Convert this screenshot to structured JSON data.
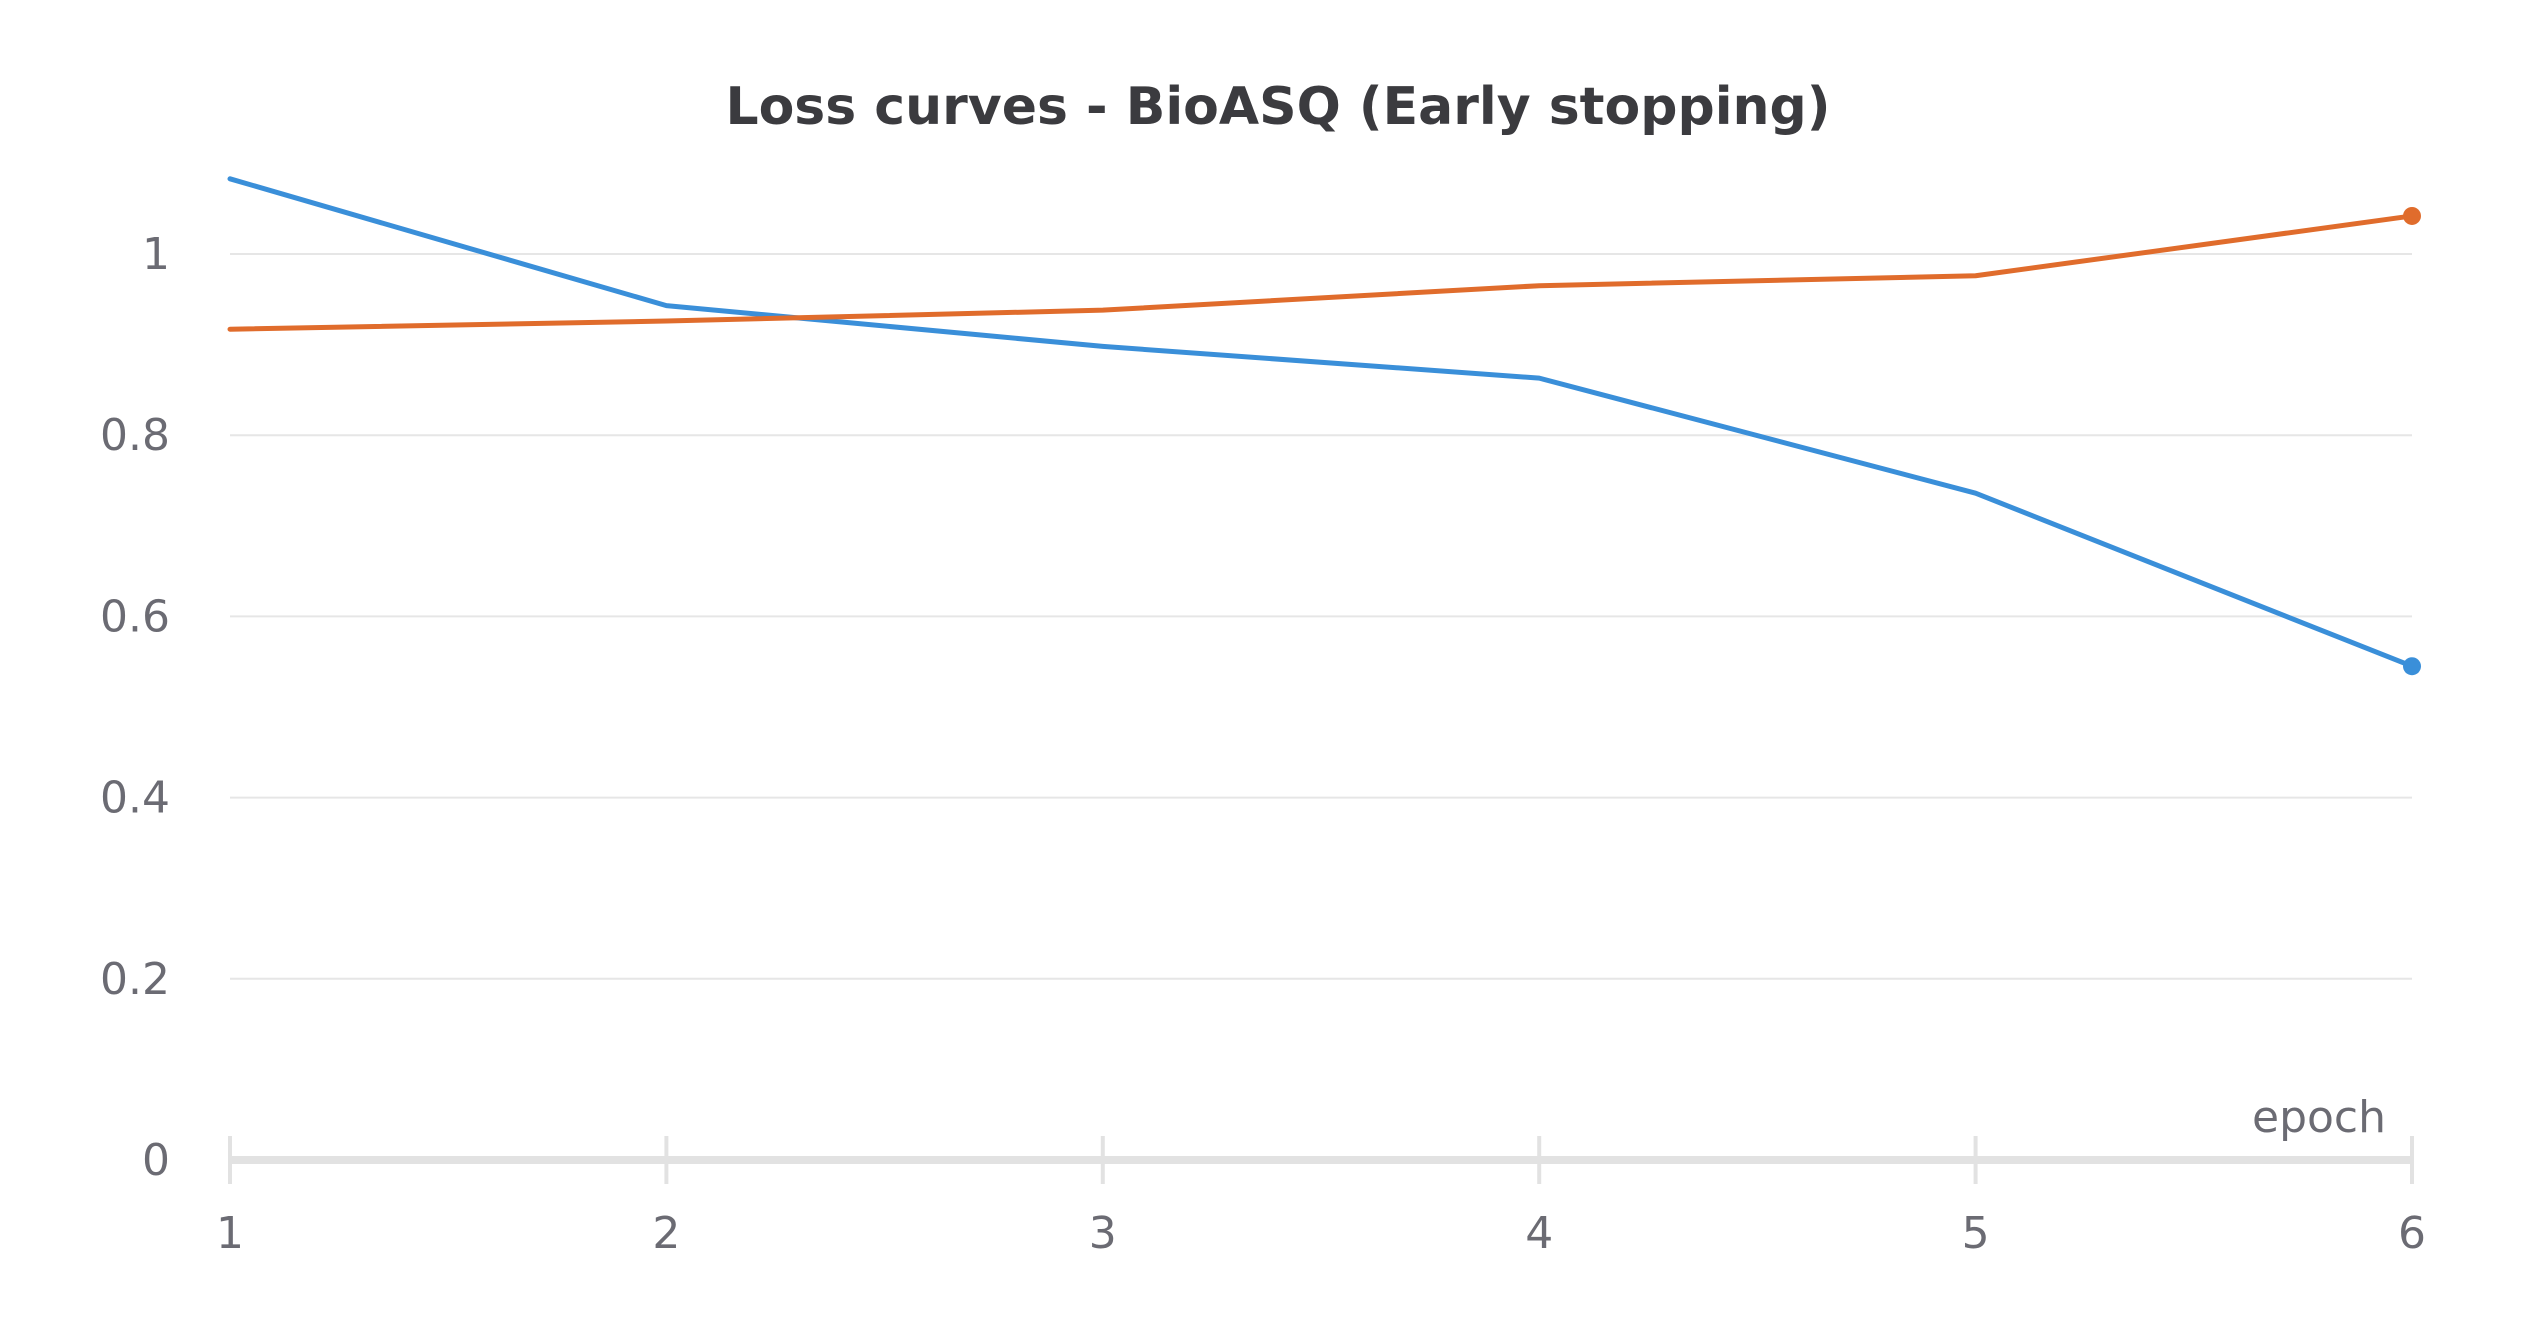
{
  "chart_data": {
    "type": "line",
    "title": "Loss curves - BioASQ (Early stopping)",
    "xlabel": "epoch",
    "ylabel": "",
    "x": [
      1,
      2,
      3,
      4,
      5,
      6
    ],
    "xlim": [
      1,
      6
    ],
    "ylim": [
      0,
      1.1
    ],
    "x_ticks": [
      "1",
      "2",
      "3",
      "4",
      "5",
      "6"
    ],
    "y_ticks": [
      "0",
      "0.2",
      "0.4",
      "0.6",
      "0.8",
      "1"
    ],
    "grid": true,
    "series": [
      {
        "color": "#3a8fd9",
        "values": [
          1.083,
          0.943,
          0.898,
          0.863,
          0.736,
          0.545
        ]
      },
      {
        "color": "#e06c2c",
        "values": [
          0.917,
          0.926,
          0.938,
          0.965,
          0.976,
          1.042
        ]
      }
    ]
  }
}
